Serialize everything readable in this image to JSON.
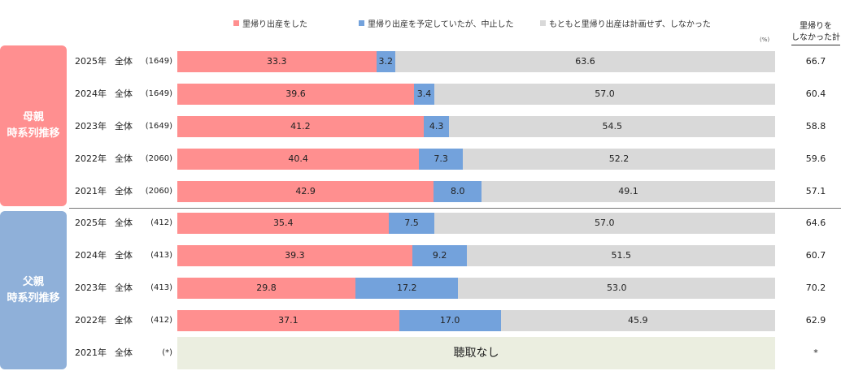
{
  "chart_data": {
    "type": "bar",
    "orientation": "horizontal-stacked-100",
    "unit_label": "(%)",
    "legend": [
      {
        "name": "里帰り出産をした",
        "color": "#ff8f8f"
      },
      {
        "name": "里帰り出産を予定していたが、中止した",
        "color": "#73a2dc"
      },
      {
        "name": "もともと里帰り出産は計画せず、しなかった",
        "color": "#d9d9d9"
      }
    ],
    "total_header": [
      "里帰りを",
      "しなかった計"
    ],
    "colors": {
      "mother_group": "#ff8f90",
      "father_group": "#8fb0d9",
      "nodata": "#ebeee0"
    },
    "groups": [
      {
        "label": [
          "母親",
          "時系列推移"
        ],
        "rows": [
          {
            "year": "2025年",
            "category": "全体",
            "n": "(1649)",
            "values": [
              33.3,
              3.2,
              63.6
            ],
            "labels": [
              "33.3",
              "3.2",
              "63.6"
            ],
            "total": "66.7"
          },
          {
            "year": "2024年",
            "category": "全体",
            "n": "(1649)",
            "values": [
              39.6,
              3.4,
              57.0
            ],
            "labels": [
              "39.6",
              "3.4",
              "57.0"
            ],
            "total": "60.4"
          },
          {
            "year": "2023年",
            "category": "全体",
            "n": "(1649)",
            "values": [
              41.2,
              4.3,
              54.5
            ],
            "labels": [
              "41.2",
              "4.3",
              "54.5"
            ],
            "total": "58.8"
          },
          {
            "year": "2022年",
            "category": "全体",
            "n": "(2060)",
            "values": [
              40.4,
              7.3,
              52.2
            ],
            "labels": [
              "40.4",
              "7.3",
              "52.2"
            ],
            "total": "59.6"
          },
          {
            "year": "2021年",
            "category": "全体",
            "n": "(2060)",
            "values": [
              42.9,
              8.0,
              49.1
            ],
            "labels": [
              "42.9",
              "8.0",
              "49.1"
            ],
            "total": "57.1"
          }
        ]
      },
      {
        "label": [
          "父親",
          "時系列推移"
        ],
        "rows": [
          {
            "year": "2025年",
            "category": "全体",
            "n": "(412)",
            "values": [
              35.4,
              7.5,
              57.0
            ],
            "labels": [
              "35.4",
              "7.5",
              "57.0"
            ],
            "total": "64.6"
          },
          {
            "year": "2024年",
            "category": "全体",
            "n": "(413)",
            "values": [
              39.3,
              9.2,
              51.5
            ],
            "labels": [
              "39.3",
              "9.2",
              "51.5"
            ],
            "total": "60.7"
          },
          {
            "year": "2023年",
            "category": "全体",
            "n": "(413)",
            "values": [
              29.8,
              17.2,
              53.0
            ],
            "labels": [
              "29.8",
              "17.2",
              "53.0"
            ],
            "total": "70.2"
          },
          {
            "year": "2022年",
            "category": "全体",
            "n": "(412)",
            "values": [
              37.1,
              17.0,
              45.9
            ],
            "labels": [
              "37.1",
              "17.0",
              "45.9"
            ],
            "total": "62.9"
          },
          {
            "year": "2021年",
            "category": "全体",
            "n": "(*)",
            "values": null,
            "nodata_label": "聴取なし",
            "total": "*"
          }
        ]
      }
    ],
    "xlim": [
      0,
      100
    ]
  }
}
